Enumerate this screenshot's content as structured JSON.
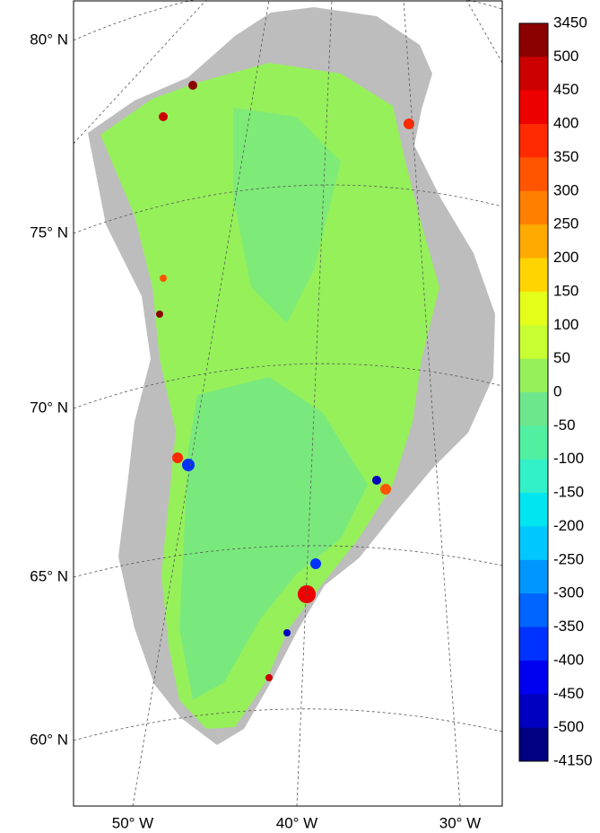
{
  "map": {
    "lat_labels": [
      "80° N",
      "75° N",
      "70° N",
      "65° N",
      "60° N"
    ],
    "lon_labels": [
      "50° W",
      "40° W",
      "30° W"
    ]
  },
  "colorbar": {
    "ticks": [
      3450,
      500,
      450,
      400,
      350,
      300,
      250,
      200,
      150,
      100,
      50,
      0,
      -50,
      -100,
      -150,
      -200,
      -250,
      -300,
      -350,
      -400,
      -450,
      -500,
      -4150
    ],
    "colors": [
      "#8b0000",
      "#cd0000",
      "#ee0000",
      "#ff2a00",
      "#ff5500",
      "#ff7f00",
      "#ffaa00",
      "#ffd400",
      "#e6ff1a",
      "#c8ff32",
      "#96f05a",
      "#6ee68c",
      "#50f0a0",
      "#32f0c8",
      "#00e6f0",
      "#00c8ff",
      "#0096ff",
      "#0064ff",
      "#0032ff",
      "#0000f0",
      "#0000c0",
      "#000080"
    ]
  }
}
